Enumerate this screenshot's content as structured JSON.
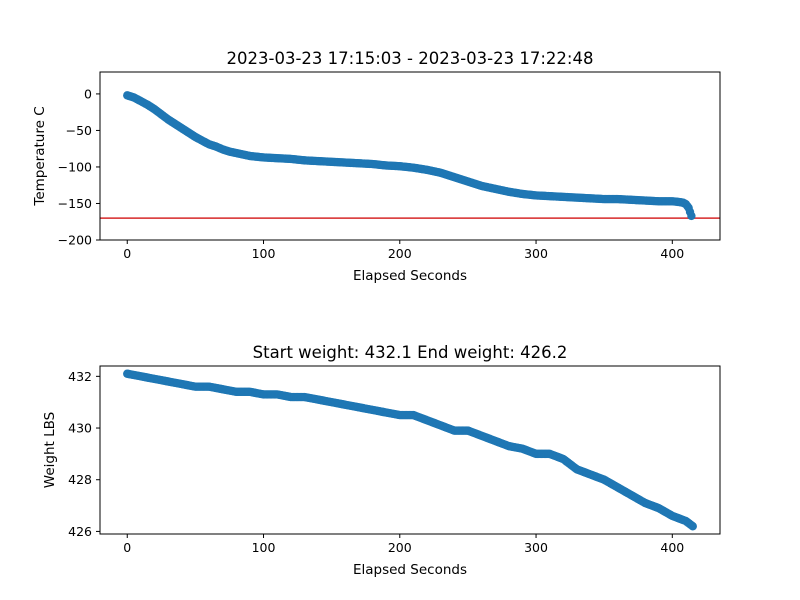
{
  "figure": {
    "background": "#ffffff"
  },
  "chart_data": [
    {
      "type": "scatter",
      "title": "2023-03-23 17:15:03 - 2023-03-23 17:22:48",
      "xlabel": "Elapsed Seconds",
      "ylabel": "Temperature C",
      "xlim": [
        -20,
        435
      ],
      "ylim": [
        -200,
        30
      ],
      "xticks": [
        0,
        100,
        200,
        300,
        400
      ],
      "yticks": [
        0,
        -50,
        -100,
        -150,
        -200
      ],
      "xtick_labels": [
        "0",
        "100",
        "200",
        "300",
        "400"
      ],
      "ytick_labels": [
        "0",
        "−50",
        "−100",
        "−150",
        "−200"
      ],
      "grid": false,
      "marker_color": "#1f77b4",
      "reference_line": {
        "y": -170,
        "color": "#d62728"
      },
      "series": [
        {
          "x": [
            0,
            5,
            10,
            15,
            20,
            25,
            30,
            35,
            40,
            45,
            50,
            55,
            60,
            65,
            70,
            75,
            80,
            85,
            90,
            95,
            100,
            110,
            120,
            130,
            140,
            150,
            160,
            170,
            180,
            190,
            200,
            210,
            220,
            230,
            240,
            250,
            260,
            270,
            280,
            290,
            300,
            310,
            320,
            330,
            340,
            350,
            360,
            370,
            380,
            390,
            400,
            405,
            408,
            410,
            412,
            414
          ],
          "y": [
            -2,
            -5,
            -10,
            -15,
            -21,
            -28,
            -35,
            -41,
            -47,
            -53,
            -59,
            -64,
            -69,
            -72,
            -76,
            -79,
            -81,
            -83,
            -85,
            -86,
            -87,
            -88,
            -89,
            -91,
            -92,
            -93,
            -94,
            -95,
            -96,
            -98,
            -99,
            -101,
            -104,
            -108,
            -114,
            -120,
            -126,
            -130,
            -134,
            -137,
            -139,
            -140,
            -141,
            -142,
            -143,
            -144,
            -144,
            -145,
            -146,
            -147,
            -147,
            -148,
            -149,
            -151,
            -156,
            -167
          ]
        }
      ]
    },
    {
      "type": "scatter",
      "title": "Start weight: 432.1 End weight: 426.2",
      "xlabel": "Elapsed Seconds",
      "ylabel": "Weight LBS",
      "xlim": [
        -20,
        435
      ],
      "ylim": [
        425.9,
        432.4
      ],
      "xticks": [
        0,
        100,
        200,
        300,
        400
      ],
      "yticks": [
        426,
        428,
        430,
        432
      ],
      "xtick_labels": [
        "0",
        "100",
        "200",
        "300",
        "400"
      ],
      "ytick_labels": [
        "426",
        "428",
        "430",
        "432"
      ],
      "grid": false,
      "marker_color": "#1f77b4",
      "series": [
        {
          "x": [
            0,
            10,
            20,
            30,
            40,
            50,
            60,
            70,
            80,
            90,
            100,
            110,
            120,
            130,
            140,
            150,
            160,
            170,
            180,
            190,
            200,
            210,
            220,
            230,
            240,
            250,
            260,
            270,
            280,
            290,
            300,
            310,
            320,
            330,
            340,
            350,
            360,
            370,
            380,
            390,
            400,
            410,
            415
          ],
          "y": [
            432.1,
            432.0,
            431.9,
            431.8,
            431.7,
            431.6,
            431.6,
            431.5,
            431.4,
            431.4,
            431.3,
            431.3,
            431.2,
            431.2,
            431.1,
            431.0,
            430.9,
            430.8,
            430.7,
            430.6,
            430.5,
            430.5,
            430.3,
            430.1,
            429.9,
            429.9,
            429.7,
            429.5,
            429.3,
            429.2,
            429.0,
            429.0,
            428.8,
            428.4,
            428.2,
            428.0,
            427.7,
            427.4,
            427.1,
            426.9,
            426.6,
            426.4,
            426.2
          ]
        }
      ]
    }
  ]
}
